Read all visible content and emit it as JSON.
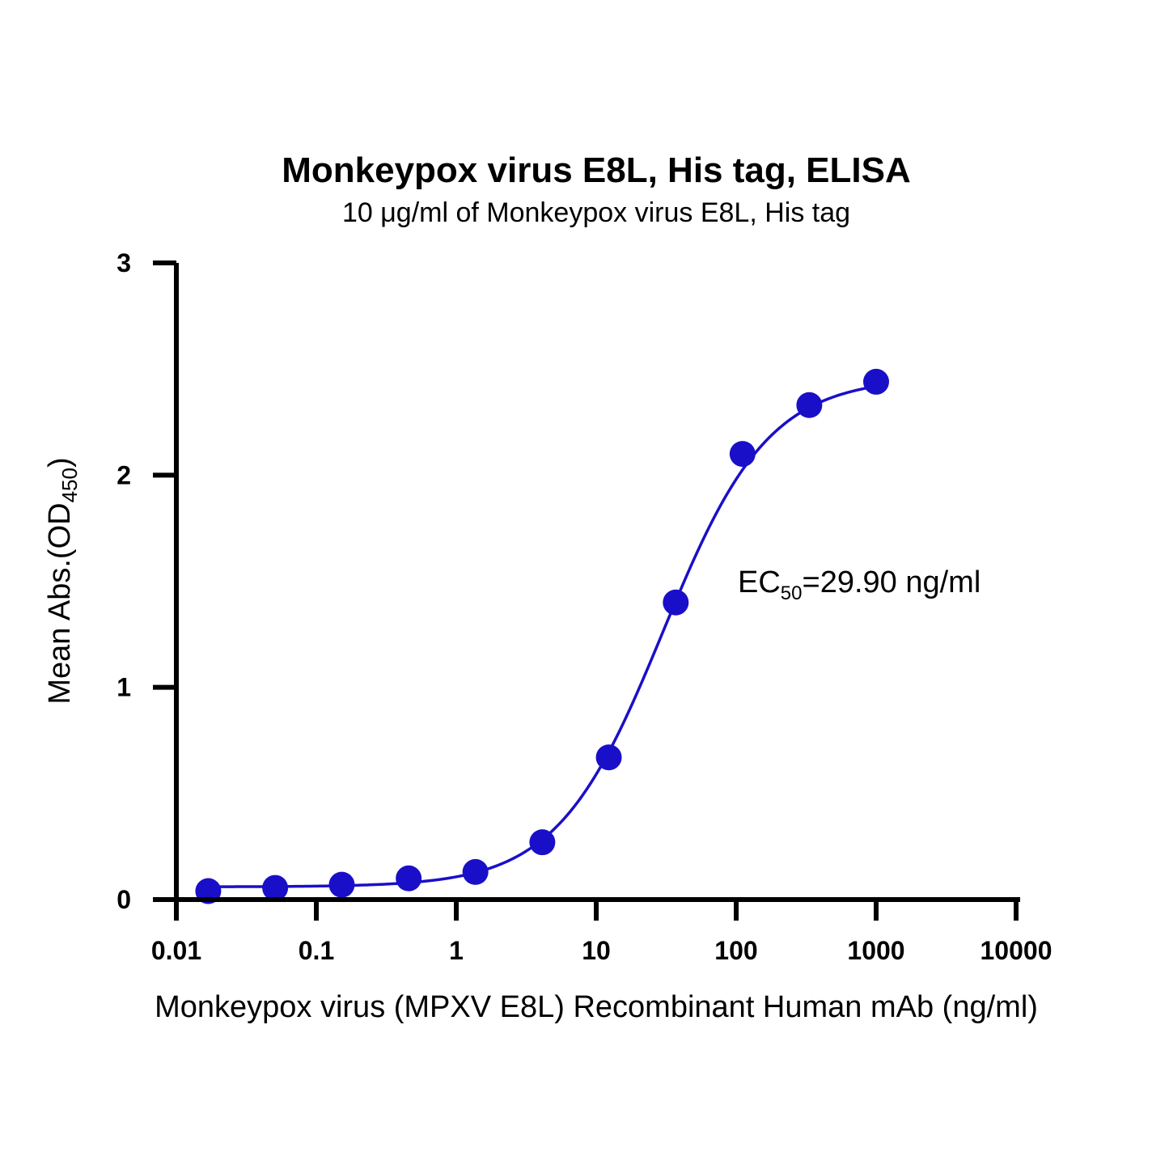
{
  "chart_data": {
    "type": "scatter",
    "title": "Monkeypox virus E8L, His tag, ELISA",
    "subtitle": "10 μg/ml of Monkeypox virus E8L, His tag",
    "xlabel": "Monkeypox virus (MPXV E8L) Recombinant Human mAb (ng/ml)",
    "ylabel": {
      "main": "Mean Abs.(OD",
      "sub": "450",
      "close": ")"
    },
    "xscale": "log",
    "xlim": [
      0.01,
      10000
    ],
    "ylim": [
      0,
      3
    ],
    "x_ticks": [
      0.01,
      0.1,
      1,
      10,
      100,
      1000,
      10000
    ],
    "x_tick_labels": [
      "0.01",
      "0.1",
      "1",
      "10",
      "100",
      "1000",
      "10000"
    ],
    "y_ticks": [
      0,
      1,
      2,
      3
    ],
    "y_tick_labels": [
      "0",
      "1",
      "2",
      "3"
    ],
    "grid": false,
    "color": "#1a0fc8",
    "series": [
      {
        "x": [
          0.0169,
          0.0508,
          0.152,
          0.457,
          1.37,
          4.12,
          12.3,
          37.0,
          111,
          333,
          1000
        ],
        "y": [
          0.04,
          0.055,
          0.07,
          0.1,
          0.13,
          0.27,
          0.67,
          1.4,
          2.1,
          2.33,
          2.44
        ]
      }
    ],
    "fit": {
      "model": "4PL",
      "bottom": 0.06,
      "top": 2.46,
      "ec50": 29.9,
      "hill": 1.15
    },
    "annotation": {
      "prefix": "EC",
      "sub": "50",
      "suffix": "=29.90 ng/ml"
    }
  }
}
